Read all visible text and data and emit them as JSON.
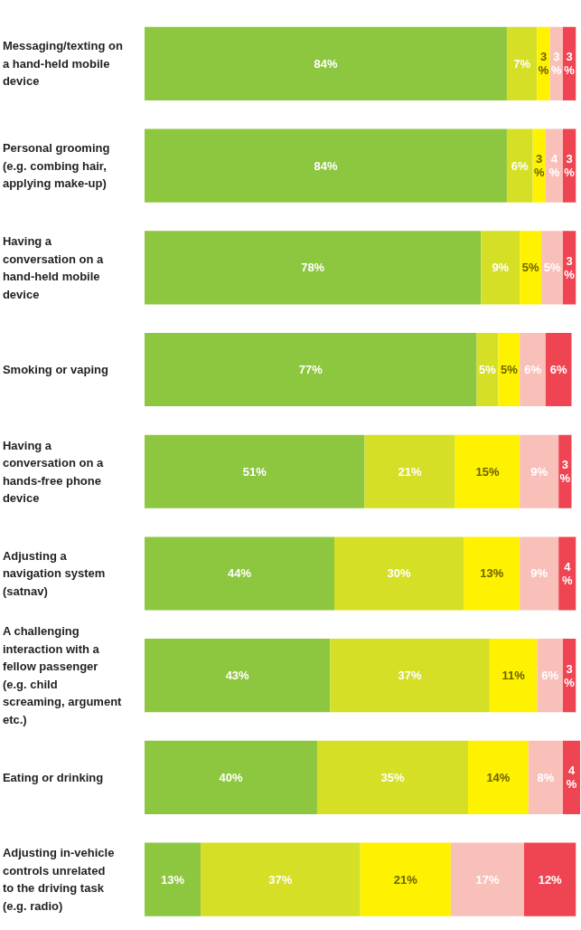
{
  "chart_data": {
    "type": "bar",
    "orientation": "horizontal",
    "stacked": true,
    "categories": [
      "Messaging/texting on a hand-held mobile device",
      "Personal grooming (e.g. combing hair, applying make-up)",
      "Having a conversation on a hand-held mobile device",
      "Smoking or vaping",
      "Having a conversation on a hands-free phone device",
      "Adjusting a navigation system (satnav)",
      "A challenging interaction with a fellow passenger (e.g. child screaming, argument etc.)",
      "Eating or drinking",
      "Adjusting in-vehicle controls unrelated to the driving task (e.g. radio)"
    ],
    "series": [
      {
        "color": "#8dc63f",
        "values": [
          84,
          84,
          78,
          77,
          51,
          44,
          43,
          40,
          13
        ],
        "value_labels": [
          "84%",
          "84%",
          "78%",
          "77%",
          "51%",
          "44%",
          "43%",
          "40%",
          "13%"
        ]
      },
      {
        "color": "#d5df26",
        "values": [
          7,
          6,
          9,
          5,
          21,
          30,
          37,
          35,
          37
        ],
        "value_labels": [
          "7%",
          "6%",
          "9%",
          "5%",
          "21%",
          "30%",
          "37%",
          "35%",
          "37%"
        ]
      },
      {
        "color": "#fff200",
        "values": [
          3,
          3,
          5,
          5,
          15,
          13,
          11,
          14,
          21
        ],
        "value_labels": [
          "3%",
          "3%",
          "5%",
          "5%",
          "15%",
          "13%",
          "11%",
          "14%",
          "21%"
        ]
      },
      {
        "color": "#f9c0b9",
        "values": [
          3,
          4,
          5,
          6,
          9,
          9,
          6,
          8,
          17
        ],
        "value_labels": [
          "3%",
          "4%",
          "5%",
          "6%",
          "9%",
          "9%",
          "6%",
          "8%",
          "17%"
        ]
      },
      {
        "color": "#ef4452",
        "values": [
          3,
          3,
          3,
          6,
          3,
          4,
          3,
          4,
          12
        ],
        "value_labels": [
          "3%",
          "3%",
          "3%",
          "6%",
          "3%",
          "4%",
          "3%",
          "4%",
          "12%"
        ]
      }
    ]
  }
}
